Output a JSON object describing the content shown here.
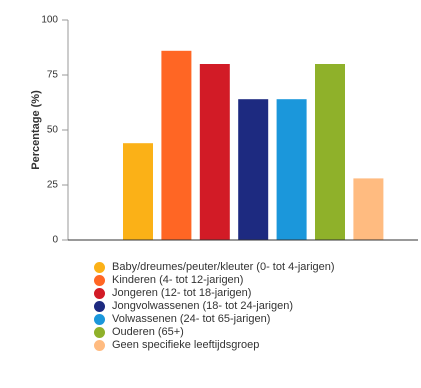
{
  "chart_data": {
    "type": "bar",
    "y_label": "Percentage (%)",
    "categories": [
      "Baby/dreumes/peuter/kleuter (0- tot 4-jarigen)",
      "Kinderen (4- tot 12-jarigen)",
      "Jongeren (12- tot 18-jarigen)",
      "Jongvolwassenen (18- tot 24-jarigen)",
      "Volwassenen (24- tot 65-jarigen)",
      "Ouderen (65+)",
      "Geen specifieke leeftijdsgroep"
    ],
    "values": [
      44,
      86,
      80,
      64,
      64,
      80,
      28
    ],
    "colors": [
      "#fbb117",
      "#ff6624",
      "#d21b26",
      "#1d2a80",
      "#1b97db",
      "#8fb12a",
      "#ffbb80"
    ],
    "ylim": [
      0,
      100
    ],
    "yticks": [
      0,
      25,
      50,
      75,
      100
    ],
    "grid": false
  }
}
